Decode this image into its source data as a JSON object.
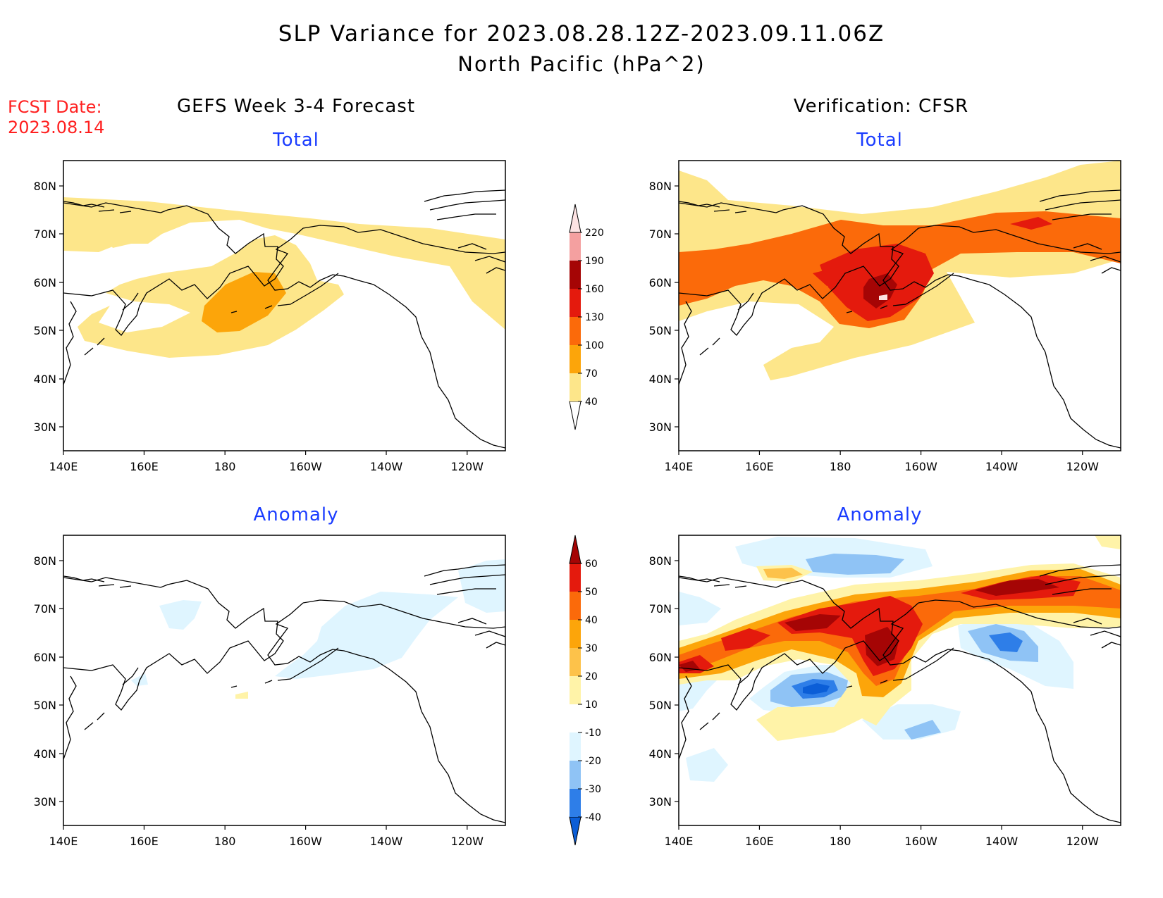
{
  "title": {
    "line1": "SLP Variance for 2023.08.28.12Z-2023.09.11.06Z",
    "line2": "North Pacific (hPa^2)"
  },
  "forecast_date": {
    "label": "FCST Date:",
    "value": "2023.08.14"
  },
  "columns": {
    "left": "GEFS Week 3-4 Forecast",
    "right": "Verification: CFSR"
  },
  "panels": {
    "forecast_total": "Total",
    "forecast_anomaly": "Anomaly",
    "verif_total": "Total",
    "verif_anomaly": "Anomaly"
  },
  "axes": {
    "lon_labels": [
      "140E",
      "160E",
      "180",
      "160W",
      "140W",
      "120W"
    ],
    "lat_labels": [
      "80N",
      "70N",
      "60N",
      "50N",
      "40N",
      "30N"
    ]
  },
  "total_scale": {
    "levels": [
      "40",
      "70",
      "100",
      "130",
      "160",
      "190",
      "220"
    ],
    "colors": [
      "#fde68a",
      "#fca50a",
      "#fb6a0a",
      "#e41a0d",
      "#a50505",
      "#f4a0a0",
      "#fde3e3"
    ]
  },
  "anomaly_scale": {
    "levels": [
      "-40",
      "-30",
      "-20",
      "-10",
      "10",
      "20",
      "30",
      "40",
      "50",
      "60"
    ],
    "colors": [
      "#0b5ed7",
      "#2e7ee8",
      "#8fc3f5",
      "#dff5ff",
      "#ffffff",
      "#fff3a8",
      "#fdc24a",
      "#fca50a",
      "#fb6a0a",
      "#e41a0d",
      "#a50505"
    ]
  }
}
